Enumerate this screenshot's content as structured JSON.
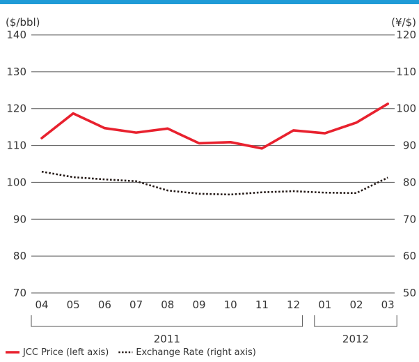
{
  "chart_data": {
    "type": "line",
    "categories": [
      "04",
      "05",
      "06",
      "07",
      "08",
      "09",
      "10",
      "11",
      "12",
      "01",
      "02",
      "03"
    ],
    "groups": [
      {
        "label": "2011",
        "from": 0,
        "to": 8
      },
      {
        "label": "2012",
        "from": 9,
        "to": 11
      }
    ],
    "left_axis": {
      "unit": "($/bbl)",
      "ticks": [
        140,
        130,
        120,
        110,
        100,
        90,
        80,
        70
      ],
      "ylim": [
        70,
        140
      ]
    },
    "right_axis": {
      "unit": "(¥/$)",
      "ticks": [
        120,
        110,
        100,
        90,
        80,
        70,
        60,
        50
      ],
      "ylim": [
        50,
        120
      ]
    },
    "series": [
      {
        "name": "JCC Price (left axis)",
        "axis": "left",
        "style": "solid",
        "color": "#e8212e",
        "values": [
          112.0,
          118.7,
          114.7,
          113.5,
          114.6,
          110.6,
          110.9,
          109.2,
          114.1,
          113.3,
          116.2,
          121.3
        ]
      },
      {
        "name": "Exchange Rate (right axis)",
        "axis": "right",
        "style": "dotted",
        "color": "#231815",
        "values": [
          82.9,
          81.4,
          80.8,
          80.3,
          77.8,
          76.9,
          76.7,
          77.3,
          77.6,
          77.2,
          77.1,
          81.3
        ]
      }
    ],
    "grid": true,
    "legend": "bottom-left"
  },
  "colors": {
    "accent": "#e8212e",
    "top_bar": "#1f9bd7"
  }
}
